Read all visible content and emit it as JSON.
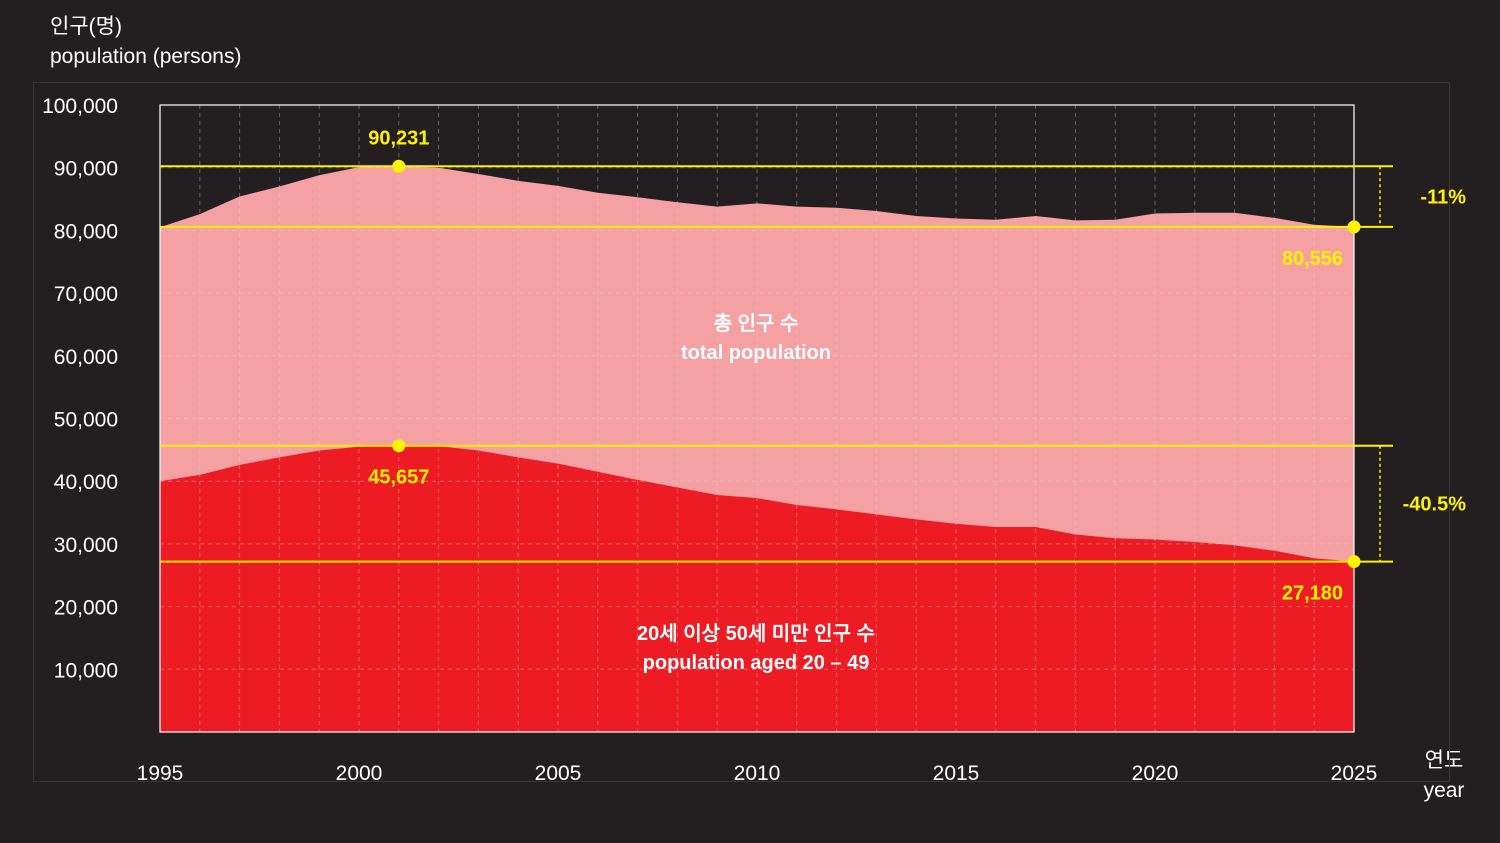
{
  "chart_data": {
    "type": "area",
    "ylabel_ko": "인구(명)",
    "ylabel_en": "population (persons)",
    "xlabel_ko": "연도",
    "xlabel_en": "year",
    "ylim": [
      0,
      100000
    ],
    "xlim": [
      1995,
      2025
    ],
    "y_ticks": [
      10000,
      20000,
      30000,
      40000,
      50000,
      60000,
      70000,
      80000,
      90000,
      100000
    ],
    "y_tick_labels": [
      "10,000",
      "20,000",
      "30,000",
      "40,000",
      "50,000",
      "60,000",
      "70,000",
      "80,000",
      "90,000",
      "100,000"
    ],
    "x_ticks": [
      1995,
      2000,
      2005,
      2010,
      2015,
      2020,
      2025
    ],
    "x_tick_labels": [
      "1995",
      "2000",
      "2005",
      "2010",
      "2015",
      "2020",
      "2025"
    ],
    "grid": true,
    "x": [
      1995,
      1996,
      1997,
      1998,
      1999,
      2000,
      2001,
      2002,
      2003,
      2004,
      2005,
      2006,
      2007,
      2008,
      2009,
      2010,
      2011,
      2012,
      2013,
      2014,
      2015,
      2016,
      2017,
      2018,
      2019,
      2020,
      2021,
      2022,
      2023,
      2024,
      2025
    ],
    "series": [
      {
        "label_ko": "총 인구 수",
        "label_en": "total population",
        "color": "#f5a0a3",
        "values": [
          80500,
          82600,
          85400,
          87000,
          88800,
          90100,
          90231,
          90000,
          89000,
          87900,
          87100,
          86000,
          85300,
          84500,
          83800,
          84300,
          83800,
          83600,
          83100,
          82300,
          81900,
          81700,
          82300,
          81600,
          81700,
          82700,
          82800,
          82800,
          82000,
          80900,
          80556
        ]
      },
      {
        "label_ko": "20세 이상 50세 미만 인구 수",
        "label_en": "population aged 20 – 49",
        "color": "#ed1c24",
        "values": [
          40000,
          41000,
          42600,
          43800,
          44900,
          45500,
          45657,
          45600,
          44900,
          43800,
          42800,
          41500,
          40200,
          39000,
          37800,
          37300,
          36200,
          35500,
          34700,
          33900,
          33200,
          32700,
          32700,
          31500,
          30900,
          30700,
          30300,
          29800,
          28900,
          27700,
          27180
        ]
      }
    ],
    "annotations": [
      {
        "text": "90,231",
        "x": 2001,
        "y": 90231,
        "label_side": "above"
      },
      {
        "text": "80,556",
        "x": 2025,
        "y": 80556,
        "label_side": "below-left"
      },
      {
        "text": "45,657",
        "x": 2001,
        "y": 45657,
        "label_side": "below"
      },
      {
        "text": "27,180",
        "x": 2025,
        "y": 27180,
        "label_side": "below-left"
      }
    ],
    "reference_lines": [
      90231,
      80556,
      45657,
      27180
    ],
    "changes": [
      {
        "text": "-11%",
        "from": 90231,
        "to": 80556
      },
      {
        "text": "-40.5%",
        "from": 45657,
        "to": 27180
      }
    ],
    "colors": {
      "background": "#231f20",
      "highlight": "#fff200",
      "grid": "#d9d9d9",
      "text": "#ffffff"
    }
  }
}
